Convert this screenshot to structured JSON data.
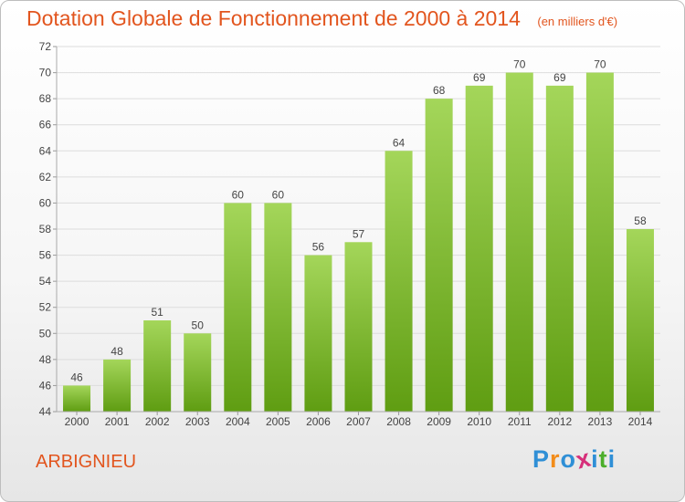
{
  "header": {
    "title": "Dotation Globale de Fonctionnement de 2000 à 2014",
    "subtitle": "(en milliers d'€)"
  },
  "footer": {
    "commune": "ARBIGNIEU",
    "logo_text": "Proxiti"
  },
  "colors": {
    "title": "#e2551e",
    "bar_top": "#a4d65a",
    "bar_bottom": "#5f9d12",
    "grid": "#dddddd",
    "logo_letters": [
      "#2f8fd6",
      "#f28c1a",
      "#2f8fd6",
      "#d62f7a",
      "#2f8fd6",
      "#4cae2b",
      "#2f8fd6"
    ]
  },
  "chart_data": {
    "type": "bar",
    "title": "Dotation Globale de Fonctionnement de 2000 à 2014",
    "subtitle": "(en milliers d'€)",
    "categories": [
      "2000",
      "2001",
      "2002",
      "2003",
      "2004",
      "2005",
      "2006",
      "2007",
      "2008",
      "2009",
      "2010",
      "2011",
      "2012",
      "2013",
      "2014"
    ],
    "values": [
      46,
      48,
      51,
      50,
      60,
      60,
      56,
      57,
      64,
      68,
      69,
      70,
      69,
      70,
      58
    ],
    "ylim": [
      44,
      72
    ],
    "yticks": [
      44,
      46,
      48,
      50,
      52,
      54,
      56,
      58,
      60,
      62,
      64,
      66,
      68,
      70,
      72
    ],
    "grid": true,
    "data_labels": true
  }
}
